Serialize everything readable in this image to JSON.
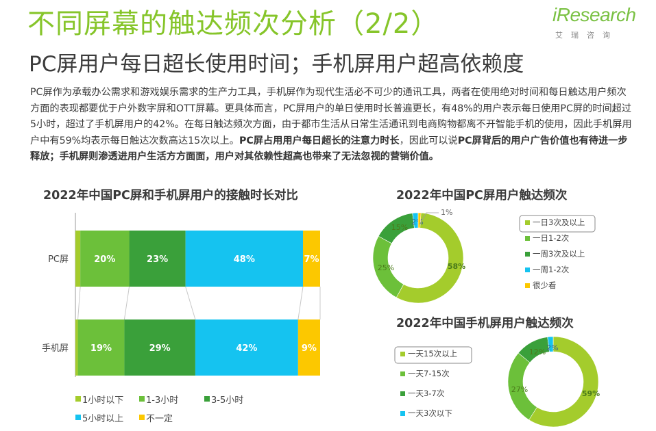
{
  "header": {
    "title": "不同屏幕的触达频次分析（2/2）",
    "subtitle": "PC屏用户每日超长使用时间；手机屏用户超高依赖度",
    "logo_main": "iResearch",
    "logo_sub": "艾瑞咨询"
  },
  "description": {
    "part1": "PC屏作为承载办公需求和游戏娱乐需求的生产力工具，手机屏作为现代生活必不可少的通讯工具，两者在使用绝对时间和每日触达用户频次方面的表现都要优于户外数字屏和OTT屏幕。更具体而言，PC屏用户的单日使用时长普遍更长，有48%的用户表示每日使用PC屏的时间超过5小时，超过了手机屏用户的42%。在每日触达频次方面，由于都市生活从日常生活通讯到电商购物都离不开智能手机的使用，因此手机屏用户中有59%均表示每日触达次数高达15次以上。",
    "bold1": "PC屏占用用户每日超长的注意力时长",
    "part2": "，因此可以说",
    "bold2": "PC屏背后的用户广告价值也有待进一步释放；手机屏则渗透进用户生活方方面面，用户对其依赖性超高也带来了无法忽视的营销价值。"
  },
  "colors": {
    "dark_green": "#3aa03a",
    "mid_green": "#6cc03a",
    "light_green": "#a4cc2c",
    "cyan": "#15c3f0",
    "yellow": "#fcc800",
    "connector": "#c8c8c8"
  },
  "chart_data": [
    {
      "type": "bar",
      "orientation": "horizontal-stacked-percent",
      "title": "2022年中国PC屏和手机屏用户的接触时长对比",
      "categories": [
        "PC屏",
        "手机屏"
      ],
      "series": [
        {
          "name": "1小时以下",
          "values": [
            2,
            1
          ],
          "labels": [
            "",
            ""
          ],
          "color": "light_green"
        },
        {
          "name": "1-3小时",
          "values": [
            20,
            19
          ],
          "labels": [
            "20%",
            "19%"
          ],
          "color": "mid_green"
        },
        {
          "name": "3-5小时",
          "values": [
            23,
            29
          ],
          "labels": [
            "23%",
            "29%"
          ],
          "color": "dark_green"
        },
        {
          "name": "5小时以上",
          "values": [
            48,
            42
          ],
          "labels": [
            "48%",
            "42%"
          ],
          "color": "cyan"
        },
        {
          "name": "不一定",
          "values": [
            7,
            9
          ],
          "labels": [
            "7%",
            "9%"
          ],
          "color": "yellow"
        }
      ]
    },
    {
      "type": "pie",
      "style": "donut",
      "title": "2022年中国PC屏用户触达频次",
      "slices": [
        {
          "name": "一日3次及以上",
          "value": 58,
          "label": "58%",
          "color": "light_green"
        },
        {
          "name": "一日1-2次",
          "value": 25,
          "label": "25%",
          "color": "mid_green"
        },
        {
          "name": "一周3次及以上",
          "value": 15,
          "label": "15%",
          "color": "dark_green"
        },
        {
          "name": "一周1-2次",
          "value": 2,
          "label": "2%",
          "color": "cyan"
        },
        {
          "name": "很少看",
          "value": 1,
          "label": "1%",
          "color": "yellow"
        }
      ]
    },
    {
      "type": "pie",
      "style": "donut",
      "title": "2022年中国手机屏用户触达频次",
      "slices": [
        {
          "name": "一天15次以上",
          "value": 59,
          "label": "59%",
          "color": "light_green"
        },
        {
          "name": "一天7-15次",
          "value": 27,
          "label": "27%",
          "color": "mid_green"
        },
        {
          "name": "一天3-7次",
          "value": 12,
          "label": "12%",
          "color": "dark_green"
        },
        {
          "name": "一天3次以下",
          "value": 2,
          "label": "2%",
          "color": "cyan"
        }
      ]
    }
  ]
}
